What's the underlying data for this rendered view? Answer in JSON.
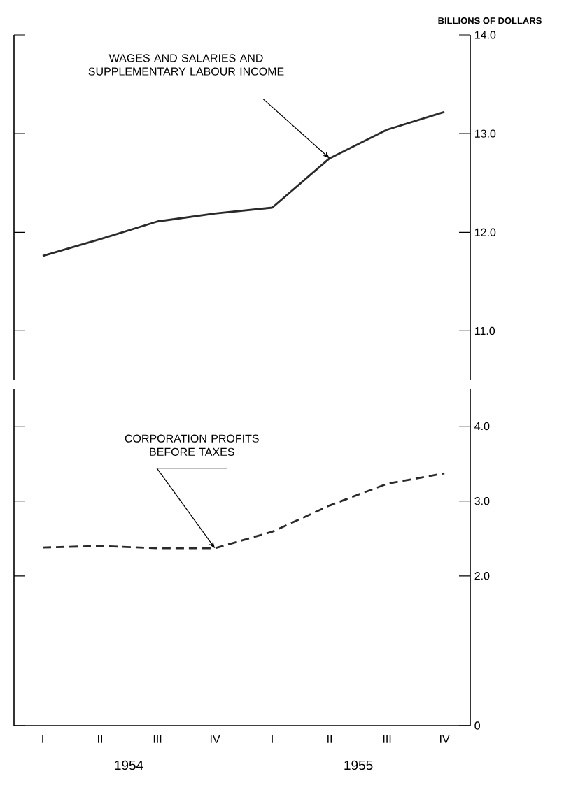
{
  "chart_data": [
    {
      "type": "line",
      "ylabel": "BILLIONS OF DOLLARS",
      "categories": [
        null,
        null,
        null,
        null,
        null,
        null,
        null,
        null
      ],
      "tick_labels": "y",
      "series": [
        {
          "name": "WAGES AND SALARIES AND SUPPLEMENTARY LABOUR INCOME",
          "color": "#2a2a2a",
          "line_style": "solid",
          "values": [
            11.76,
            11.93,
            12.11,
            12.19,
            12.25,
            12.75,
            13.04,
            13.22
          ]
        }
      ],
      "ylim": [
        10.5,
        14.0
      ],
      "yticks": [
        {
          "value": 11,
          "label": "11.0"
        },
        {
          "value": 12,
          "label": "12.0"
        },
        {
          "value": 13,
          "label": "13.0"
        },
        {
          "value": 14,
          "label": "14.0"
        }
      ]
    },
    {
      "type": "line",
      "categories": [
        "I",
        "II",
        "III",
        "IV",
        "I",
        "II",
        "III",
        "IV"
      ],
      "series": [
        {
          "name": "CORPORATION PROFITS BEFORE TAXES",
          "color": "#2a2a2a",
          "line_style": "dashed",
          "values": [
            2.38,
            2.4,
            2.37,
            2.37,
            2.59,
            2.94,
            3.23,
            3.37
          ]
        }
      ],
      "ylim": [
        0,
        4.5
      ],
      "yticks": [
        0,
        {
          "value": 2,
          "label": "2.0"
        },
        {
          "value": 3,
          "label": "3.0"
        },
        {
          "value": 4,
          "label": "4.0"
        }
      ],
      "annotations": [
        "1954",
        "1955"
      ]
    }
  ]
}
